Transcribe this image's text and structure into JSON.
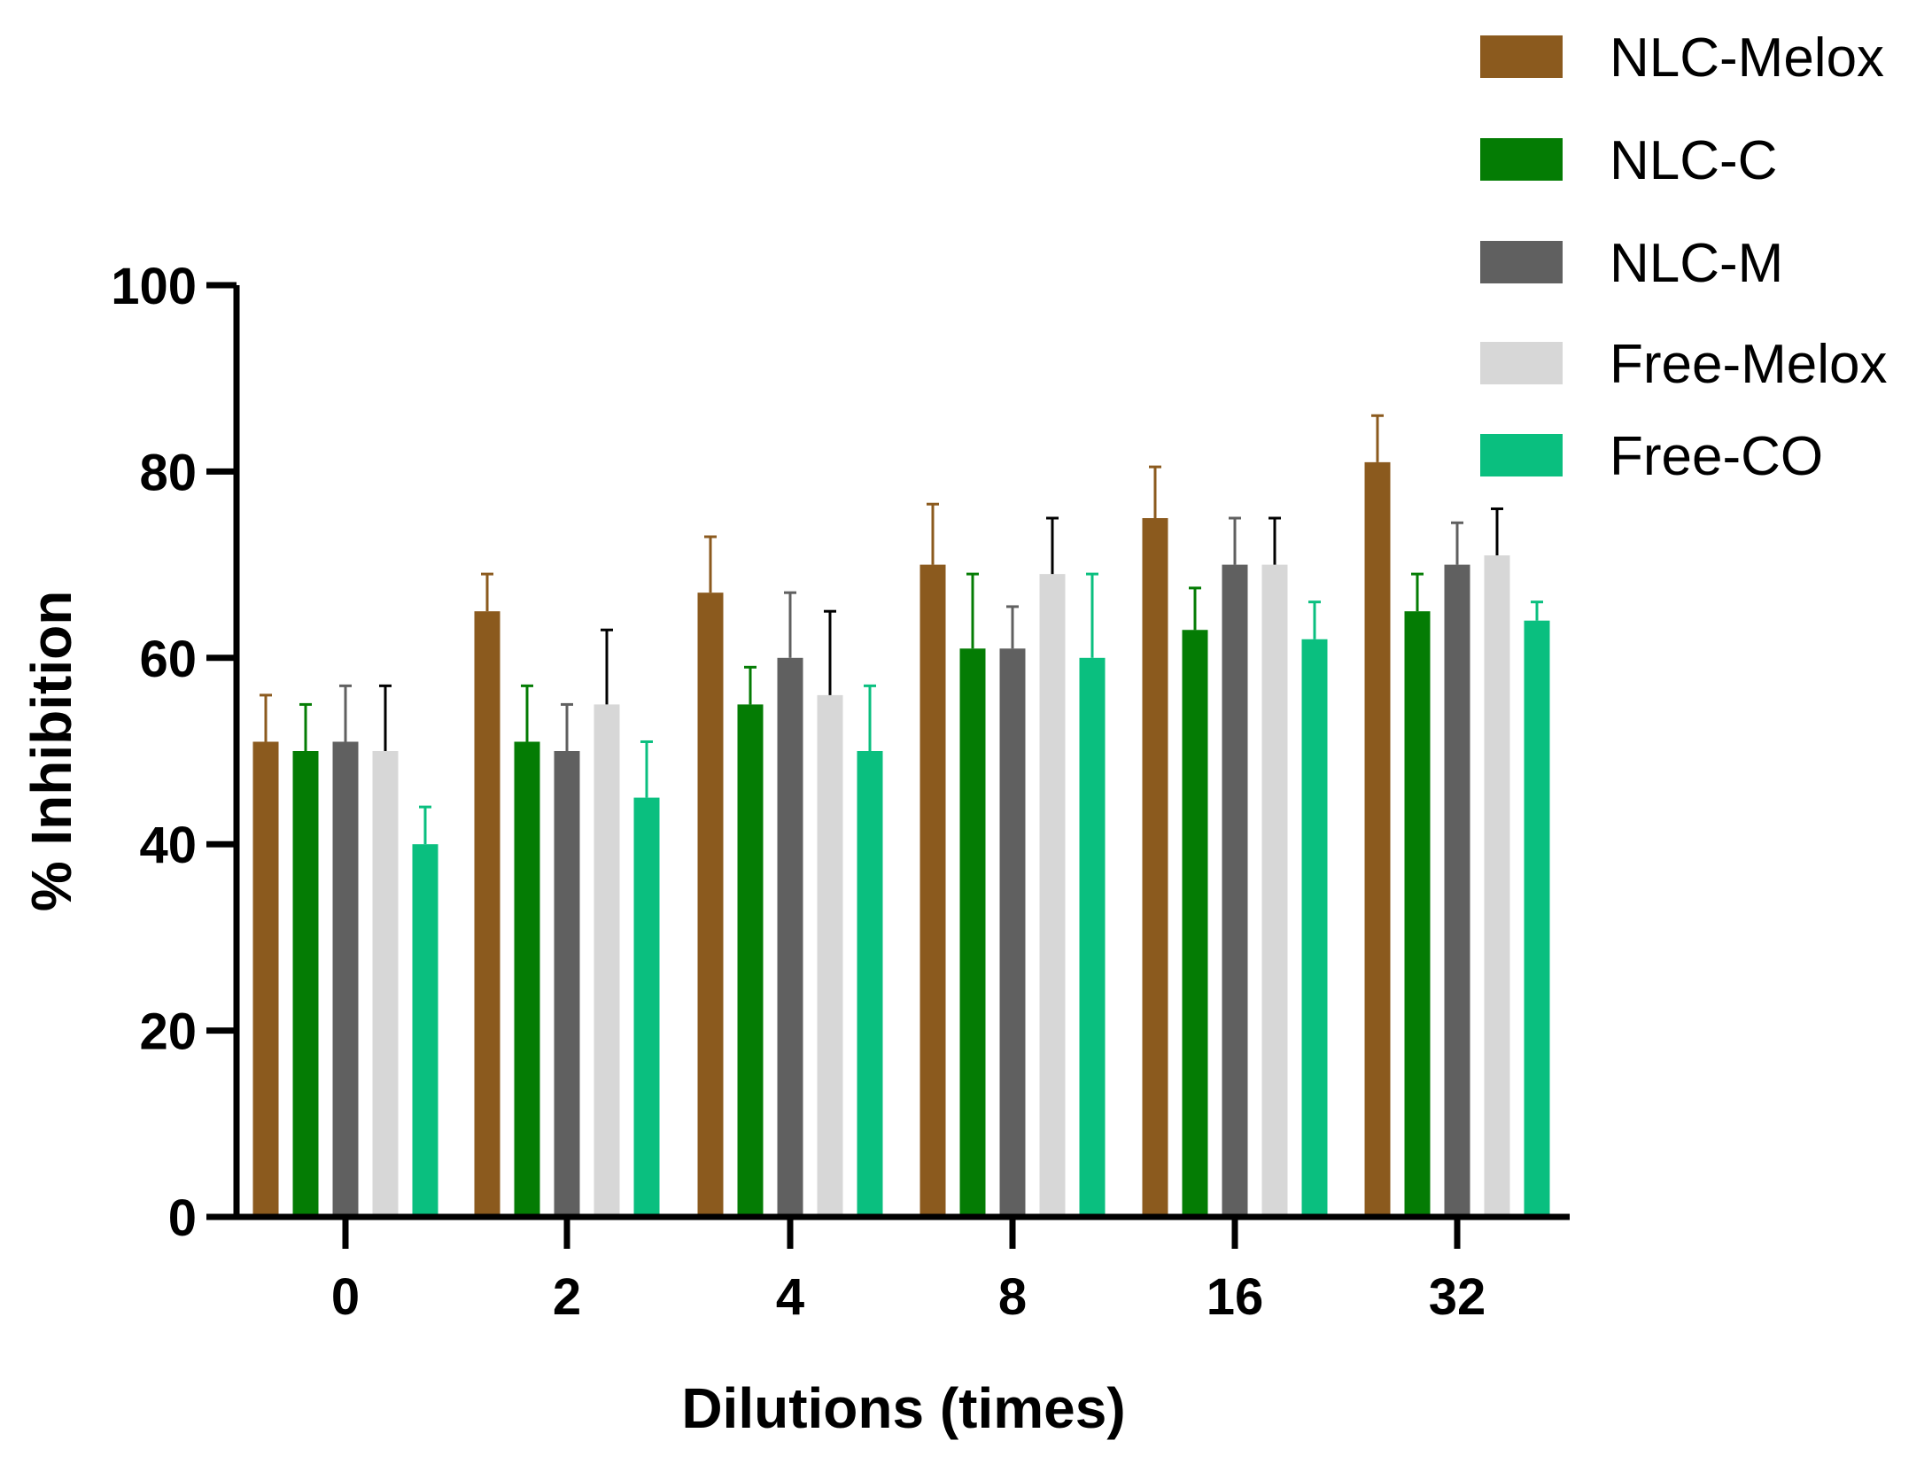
{
  "chart_data": {
    "type": "bar",
    "title": "",
    "xlabel": "Dilutions (times)",
    "ylabel": "% Inhibition",
    "ylim": [
      0,
      100
    ],
    "yticks": [
      "0",
      "20",
      "40",
      "60",
      "80",
      "100"
    ],
    "categories": [
      "0",
      "2",
      "4",
      "8",
      "16",
      "32"
    ],
    "legend_position": "top-right",
    "series": [
      {
        "name": "NLC-Melox",
        "color": "#8B5A1E",
        "errcolor": "#8B5A1E",
        "values": [
          51,
          65,
          67,
          70,
          75,
          81
        ],
        "errors": [
          5,
          4,
          6,
          6.5,
          5.5,
          5
        ]
      },
      {
        "name": "NLC-C",
        "color": "#047C04",
        "errcolor": "#047C04",
        "values": [
          50,
          51,
          55,
          61,
          63,
          65
        ],
        "errors": [
          5,
          6,
          4,
          8,
          4.5,
          4
        ]
      },
      {
        "name": "NLC-M",
        "color": "#606060",
        "errcolor": "#606060",
        "values": [
          51,
          50,
          60,
          61,
          70,
          70
        ],
        "errors": [
          6,
          5,
          7,
          4.5,
          5,
          4.5
        ]
      },
      {
        "name": "Free-Melox",
        "color": "#D7D7D7",
        "errcolor": "#000000",
        "values": [
          50,
          55,
          56,
          69,
          70,
          71
        ],
        "errors": [
          7,
          8,
          9,
          6,
          5,
          5
        ]
      },
      {
        "name": "Free-CO",
        "color": "#0ABF7F",
        "errcolor": "#0ABF7F",
        "values": [
          40,
          45,
          50,
          60,
          62,
          64
        ],
        "errors": [
          4,
          6,
          7,
          9,
          4,
          2
        ]
      }
    ]
  }
}
